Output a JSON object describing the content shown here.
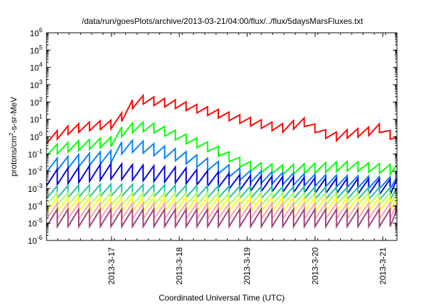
{
  "chart_data": {
    "type": "line",
    "title": "/data/run/goesPlots/archive/2013-03-21/04:00/flux/../flux/5daysMarsFluxes.txt",
    "xlabel": "Coordinated Universal Time (UTC)",
    "ylabel_base": "protons/cm",
    "ylabel_sup": "2",
    "ylabel_rest": "-s-sr-MeV",
    "yscale": "log",
    "ylim_exponents": [
      -6,
      6
    ],
    "ytick_base": "10",
    "ytick_exponents": [
      "-6",
      "-5",
      "-4",
      "-3",
      "-2",
      "-1",
      "0",
      "1",
      "2",
      "3",
      "4",
      "5",
      "6"
    ],
    "x_range": [
      "2013-03-16 01:00",
      "2013-03-21 05:00"
    ],
    "xticks": [
      "2013-3-17",
      "2013-3-18",
      "2013-3-19",
      "2013-3-20",
      "2013-3-21"
    ],
    "grid": false,
    "series": [
      {
        "color": "#ff0000",
        "x": [
          "2013-03-16 01:00",
          "2013-03-16 05:00",
          "2013-03-16 09:00",
          "2013-03-16 14:00",
          "2013-03-16 19:00",
          "2013-03-17 00:00",
          "2013-03-17 03:00",
          "2013-03-17 06:00",
          "2013-03-17 09:00",
          "2013-03-18 00:00",
          "2013-03-18 12:00",
          "2013-03-19 00:00",
          "2013-03-19 12:00",
          "2013-03-19 20:00",
          "2013-03-20 00:00",
          "2013-03-20 06:00",
          "2013-03-20 12:00",
          "2013-03-20 18:00",
          "2013-03-21 00:00",
          "2013-03-21 05:00"
        ],
        "values": [
          0.7,
          1.3,
          2.5,
          3.5,
          4.5,
          5,
          10,
          40,
          150,
          70,
          25,
          8,
          3,
          7,
          3,
          0.9,
          1.5,
          1.8,
          3.5,
          0.5
        ]
      },
      {
        "color": "#00ff00",
        "x": [
          "2013-03-16 01:00",
          "2013-03-16 12:00",
          "2013-03-17 00:00",
          "2013-03-17 02:00",
          "2013-03-17 09:00",
          "2013-03-17 16:00",
          "2013-03-18 00:00",
          "2013-03-18 12:00",
          "2013-03-19 00:00",
          "2013-03-19 12:00",
          "2013-03-20 00:00",
          "2013-03-20 12:00",
          "2013-03-21 05:00"
        ],
        "values": [
          0.15,
          0.3,
          0.5,
          1.5,
          4,
          3,
          1,
          0.2,
          0.02,
          0.012,
          0.015,
          0.02,
          0.012
        ]
      },
      {
        "color": "#0080ff",
        "x": [
          "2013-03-16 01:00",
          "2013-03-16 12:00",
          "2013-03-17 00:00",
          "2013-03-17 02:00",
          "2013-03-17 09:00",
          "2013-03-18 00:00",
          "2013-03-18 12:00",
          "2013-03-19 00:00",
          "2013-03-20 00:00",
          "2013-03-21 05:00"
        ],
        "values": [
          0.02,
          0.04,
          0.07,
          0.2,
          0.3,
          0.08,
          0.02,
          0.005,
          0.003,
          0.002
        ]
      },
      {
        "color": "#0000e0",
        "x": [
          "2013-03-16 01:00",
          "2013-03-17 00:00",
          "2013-03-18 00:00",
          "2013-03-19 00:00",
          "2013-03-20 00:00",
          "2013-03-21 05:00"
        ],
        "values": [
          0.004,
          0.01,
          0.006,
          0.002,
          0.0015,
          0.0012
        ]
      },
      {
        "color": "#20c0a0",
        "x": [
          "2013-03-16 01:00",
          "2013-03-17 00:00",
          "2013-03-19 00:00",
          "2013-03-21 05:00"
        ],
        "values": [
          0.0006,
          0.0008,
          0.0006,
          0.0005
        ]
      },
      {
        "color": "#a0ff60",
        "x": [
          "2013-03-16 01:00",
          "2013-03-21 05:00"
        ],
        "values": [
          0.00025,
          0.00025
        ]
      },
      {
        "color": "#ffff00",
        "x": [
          "2013-03-16 01:00",
          "2013-03-21 05:00"
        ],
        "values": [
          0.00012,
          0.00012
        ]
      },
      {
        "color": "#ffa0a0",
        "x": [
          "2013-03-16 01:00",
          "2013-03-21 05:00"
        ],
        "values": [
          5e-05,
          5e-05
        ]
      },
      {
        "color": "#a04080",
        "x": [
          "2013-03-16 01:00",
          "2013-03-21 05:00"
        ],
        "values": [
          2e-05,
          2e-05
        ]
      }
    ]
  }
}
